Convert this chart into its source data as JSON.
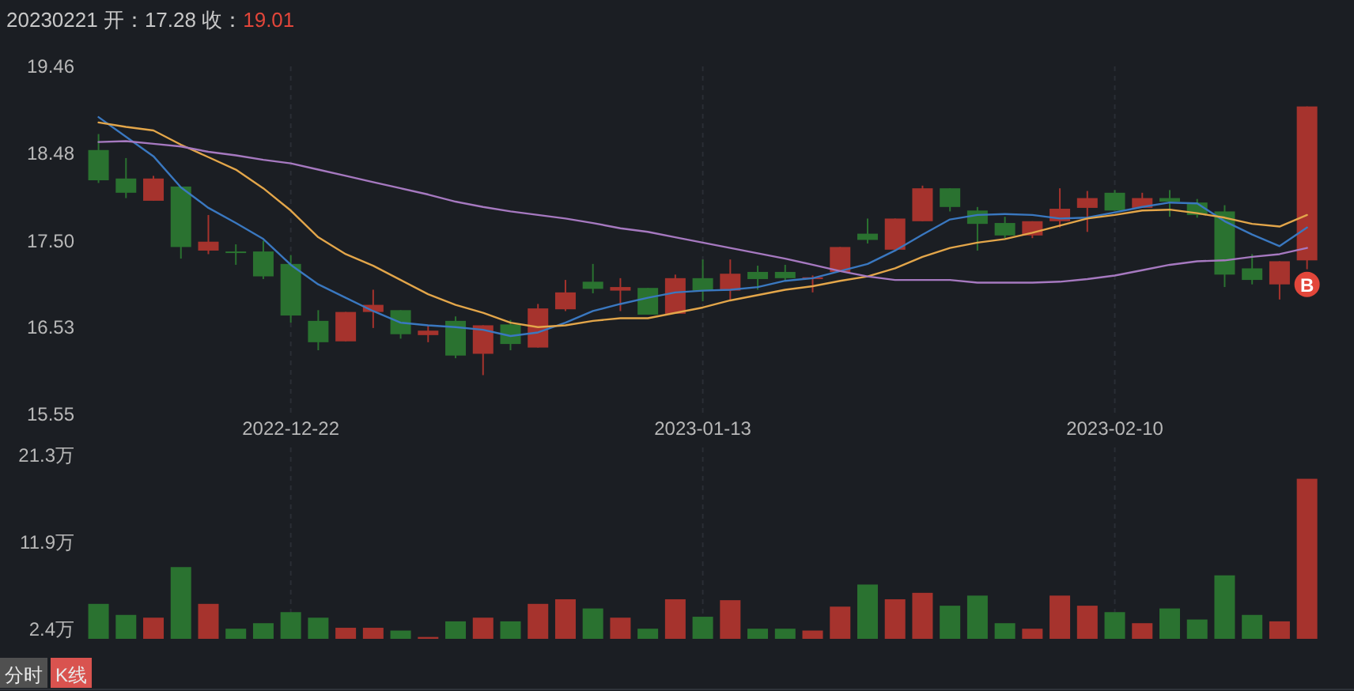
{
  "chart_data": [
    {
      "type": "candlestick",
      "title": "20230221 开：17.28 收：19.01",
      "categories": [
        null,
        null,
        null,
        null,
        null,
        null,
        null,
        "2022-12-22",
        null,
        null,
        null,
        null,
        null,
        null,
        null,
        null,
        null,
        null,
        null,
        null,
        null,
        null,
        "2023-01-13",
        null,
        null,
        null,
        null,
        null,
        null,
        null,
        null,
        null,
        null,
        null,
        null,
        null,
        null,
        "2023-02-10",
        null,
        null,
        null,
        null,
        null,
        null,
        null
      ],
      "ohlc": [
        [
          18.52,
          18.7,
          18.15,
          18.18
        ],
        [
          18.2,
          18.43,
          17.98,
          18.04
        ],
        [
          17.95,
          18.23,
          17.95,
          18.2
        ],
        [
          18.11,
          18.11,
          17.3,
          17.43
        ],
        [
          17.39,
          17.79,
          17.35,
          17.49
        ],
        [
          17.38,
          17.46,
          17.23,
          17.37
        ],
        [
          17.38,
          17.5,
          17.07,
          17.1
        ],
        [
          17.24,
          17.34,
          16.58,
          16.66
        ],
        [
          16.6,
          16.72,
          16.27,
          16.36
        ],
        [
          16.37,
          16.7,
          16.37,
          16.7
        ],
        [
          16.7,
          16.95,
          16.52,
          16.78
        ],
        [
          16.72,
          16.72,
          16.4,
          16.45
        ],
        [
          16.44,
          16.55,
          16.36,
          16.49
        ],
        [
          16.6,
          16.65,
          16.18,
          16.21
        ],
        [
          16.23,
          16.55,
          15.99,
          16.55
        ],
        [
          16.56,
          16.61,
          16.27,
          16.34
        ],
        [
          16.3,
          16.79,
          16.3,
          16.74
        ],
        [
          16.73,
          17.06,
          16.71,
          16.92
        ],
        [
          17.04,
          17.24,
          16.91,
          16.96
        ],
        [
          16.94,
          17.08,
          16.71,
          16.98
        ],
        [
          16.97,
          16.97,
          16.67,
          16.67
        ],
        [
          16.68,
          17.12,
          16.68,
          17.08
        ],
        [
          17.08,
          17.29,
          16.82,
          16.94
        ],
        [
          16.94,
          17.29,
          16.83,
          17.13
        ],
        [
          17.15,
          17.22,
          16.95,
          17.07
        ],
        [
          17.15,
          17.23,
          17.05,
          17.08
        ],
        [
          17.07,
          17.11,
          16.92,
          17.09
        ],
        [
          17.15,
          17.43,
          17.15,
          17.43
        ],
        [
          17.58,
          17.75,
          17.47,
          17.51
        ],
        [
          17.4,
          17.75,
          17.38,
          17.75
        ],
        [
          17.72,
          18.12,
          17.72,
          18.09
        ],
        [
          18.09,
          18.09,
          17.83,
          17.88
        ],
        [
          17.84,
          17.88,
          17.39,
          17.69
        ],
        [
          17.7,
          17.77,
          17.53,
          17.56
        ],
        [
          17.56,
          17.72,
          17.53,
          17.72
        ],
        [
          17.72,
          18.09,
          17.65,
          17.86
        ],
        [
          17.87,
          18.06,
          17.6,
          17.98
        ],
        [
          18.04,
          18.07,
          17.84,
          17.84
        ],
        [
          17.87,
          18.04,
          17.87,
          17.98
        ],
        [
          17.98,
          18.07,
          17.77,
          17.94
        ],
        [
          17.93,
          17.97,
          17.76,
          17.79
        ],
        [
          17.83,
          17.9,
          16.98,
          17.12
        ],
        [
          17.19,
          17.35,
          17.01,
          17.06
        ],
        [
          17.01,
          17.27,
          16.84,
          17.27
        ],
        [
          17.28,
          19.01,
          17.18,
          19.01
        ]
      ],
      "colors": [
        "#2a7230",
        "#2a7230",
        "#a6332d",
        "#2a7230",
        "#a6332d",
        "#2a7230",
        "#2a7230",
        "#2a7230",
        "#2a7230",
        "#a6332d",
        "#a6332d",
        "#2a7230",
        "#a6332d",
        "#2a7230",
        "#a6332d",
        "#2a7230",
        "#a6332d",
        "#a6332d",
        "#2a7230",
        "#a6332d",
        "#2a7230",
        "#a6332d",
        "#2a7230",
        "#a6332d",
        "#2a7230",
        "#2a7230",
        "#a6332d",
        "#a6332d",
        "#2a7230",
        "#a6332d",
        "#a6332d",
        "#2a7230",
        "#2a7230",
        "#2a7230",
        "#a6332d",
        "#a6332d",
        "#a6332d",
        "#2a7230",
        "#a6332d",
        "#2a7230",
        "#2a7230",
        "#2a7230",
        "#2a7230",
        "#a6332d",
        "#a6332d"
      ],
      "series": [
        {
          "type": "line",
          "color": "#3a78c0",
          "values": [
            18.89,
            18.67,
            18.45,
            18.1,
            17.87,
            17.7,
            17.52,
            17.23,
            17.01,
            16.86,
            16.71,
            16.58,
            16.55,
            16.53,
            16.5,
            16.43,
            16.47,
            16.58,
            16.71,
            16.79,
            16.86,
            16.92,
            16.94,
            16.95,
            16.98,
            17.05,
            17.08,
            17.16,
            17.24,
            17.39,
            17.57,
            17.74,
            17.79,
            17.8,
            17.79,
            17.75,
            17.76,
            17.82,
            17.88,
            17.93,
            17.92,
            17.72,
            17.57,
            17.44,
            17.65
          ]
        },
        {
          "type": "line",
          "color": "#e3a64a",
          "values": [
            18.83,
            18.78,
            18.74,
            18.58,
            18.44,
            18.3,
            18.09,
            17.84,
            17.54,
            17.35,
            17.22,
            17.06,
            16.9,
            16.78,
            16.69,
            16.58,
            16.53,
            16.55,
            16.6,
            16.63,
            16.63,
            16.69,
            16.75,
            16.83,
            16.89,
            16.95,
            16.99,
            17.05,
            17.1,
            17.19,
            17.32,
            17.42,
            17.48,
            17.52,
            17.59,
            17.67,
            17.75,
            17.79,
            17.84,
            17.85,
            17.81,
            17.76,
            17.69,
            17.66,
            17.79
          ]
        },
        {
          "type": "line",
          "color": "#a679c0",
          "values": [
            18.61,
            18.62,
            18.59,
            18.56,
            18.5,
            18.46,
            18.41,
            18.37,
            18.3,
            18.23,
            18.16,
            18.09,
            18.02,
            17.94,
            17.88,
            17.83,
            17.79,
            17.75,
            17.7,
            17.64,
            17.6,
            17.54,
            17.48,
            17.42,
            17.36,
            17.3,
            17.23,
            17.16,
            17.1,
            17.06,
            17.06,
            17.06,
            17.03,
            17.03,
            17.03,
            17.04,
            17.07,
            17.11,
            17.17,
            17.23,
            17.27,
            17.28,
            17.32,
            17.35,
            17.42
          ]
        }
      ],
      "ylim": [
        15.55,
        19.46
      ],
      "yticks": [
        19.46,
        18.48,
        {
          "value": 17.5,
          "label": "17.50"
        },
        16.53,
        15.55
      ],
      "grid": "x",
      "annotations": [
        {
          "text": "B",
          "y": 17.01
        }
      ]
    },
    {
      "type": "bar",
      "categories": [
        null,
        null,
        null,
        null,
        null,
        null,
        null,
        "2022-12-22",
        null,
        null,
        null,
        null,
        null,
        null,
        null,
        null,
        null,
        null,
        null,
        null,
        null,
        null,
        "2023-01-13",
        null,
        null,
        null,
        null,
        null,
        null,
        null,
        null,
        null,
        null,
        null,
        null,
        null,
        null,
        "2023-02-10",
        null,
        null,
        null,
        null,
        null,
        null,
        null
      ],
      "values": [
        5.2,
        4.0,
        3.7,
        9.2,
        5.2,
        2.5,
        3.1,
        4.3,
        3.7,
        2.6,
        2.6,
        2.3,
        1.6,
        3.3,
        3.7,
        3.3,
        5.2,
        5.7,
        4.7,
        3.7,
        2.5,
        5.7,
        3.8,
        5.6,
        2.5,
        2.5,
        2.3,
        4.9,
        7.3,
        5.7,
        6.4,
        5.0,
        6.1,
        3.1,
        2.5,
        6.1,
        5.0,
        4.3,
        3.1,
        4.7,
        3.5,
        8.3,
        4.0,
        3.3,
        18.8
      ],
      "colors": [
        "#2a7230",
        "#2a7230",
        "#a6332d",
        "#2a7230",
        "#a6332d",
        "#2a7230",
        "#2a7230",
        "#2a7230",
        "#2a7230",
        "#a6332d",
        "#a6332d",
        "#2a7230",
        "#a6332d",
        "#2a7230",
        "#a6332d",
        "#2a7230",
        "#a6332d",
        "#a6332d",
        "#2a7230",
        "#a6332d",
        "#2a7230",
        "#a6332d",
        "#2a7230",
        "#a6332d",
        "#2a7230",
        "#2a7230",
        "#a6332d",
        "#a6332d",
        "#2a7230",
        "#a6332d",
        "#a6332d",
        "#2a7230",
        "#2a7230",
        "#2a7230",
        "#a6332d",
        "#a6332d",
        "#a6332d",
        "#2a7230",
        "#a6332d",
        "#2a7230",
        "#2a7230",
        "#2a7230",
        "#2a7230",
        "#a6332d",
        "#a6332d"
      ],
      "ylim": [
        1.4,
        22.2
      ],
      "yticks": [
        {
          "value": 21.3,
          "label": "21.3万"
        },
        {
          "value": 11.9,
          "label": "11.9万"
        },
        {
          "value": 2.4,
          "label": "2.4万"
        }
      ],
      "grid": "x",
      "tick_labels": "y",
      "annotations": [
        "分时",
        "K线"
      ]
    }
  ]
}
